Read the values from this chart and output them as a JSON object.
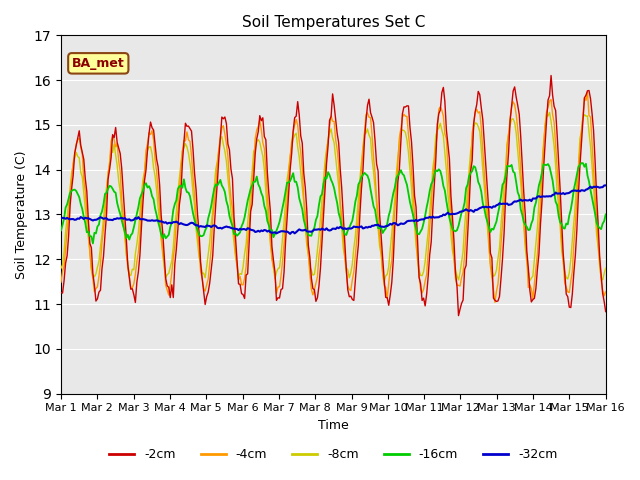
{
  "title": "Soil Temperatures Set C",
  "xlabel": "Time",
  "ylabel": "Soil Temperature (C)",
  "ylim": [
    9.0,
    17.0
  ],
  "yticks": [
    9.0,
    10.0,
    11.0,
    12.0,
    13.0,
    14.0,
    15.0,
    16.0,
    17.0
  ],
  "xtick_labels": [
    "Mar 1",
    "Mar 2",
    "Mar 3",
    "Mar 4",
    "Mar 5",
    "Mar 6",
    "Mar 7",
    "Mar 8",
    "Mar 9",
    "Mar 10",
    "Mar 11",
    "Mar 12",
    "Mar 13",
    "Mar 14",
    "Mar 15",
    "Mar 16"
  ],
  "colors": {
    "-2cm": "#cc0000",
    "-4cm": "#ff9900",
    "-8cm": "#cccc00",
    "-16cm": "#00cc00",
    "-32cm": "#0000cc"
  },
  "legend_label": "BA_met",
  "n_days": 15,
  "pts_per_day": 24
}
